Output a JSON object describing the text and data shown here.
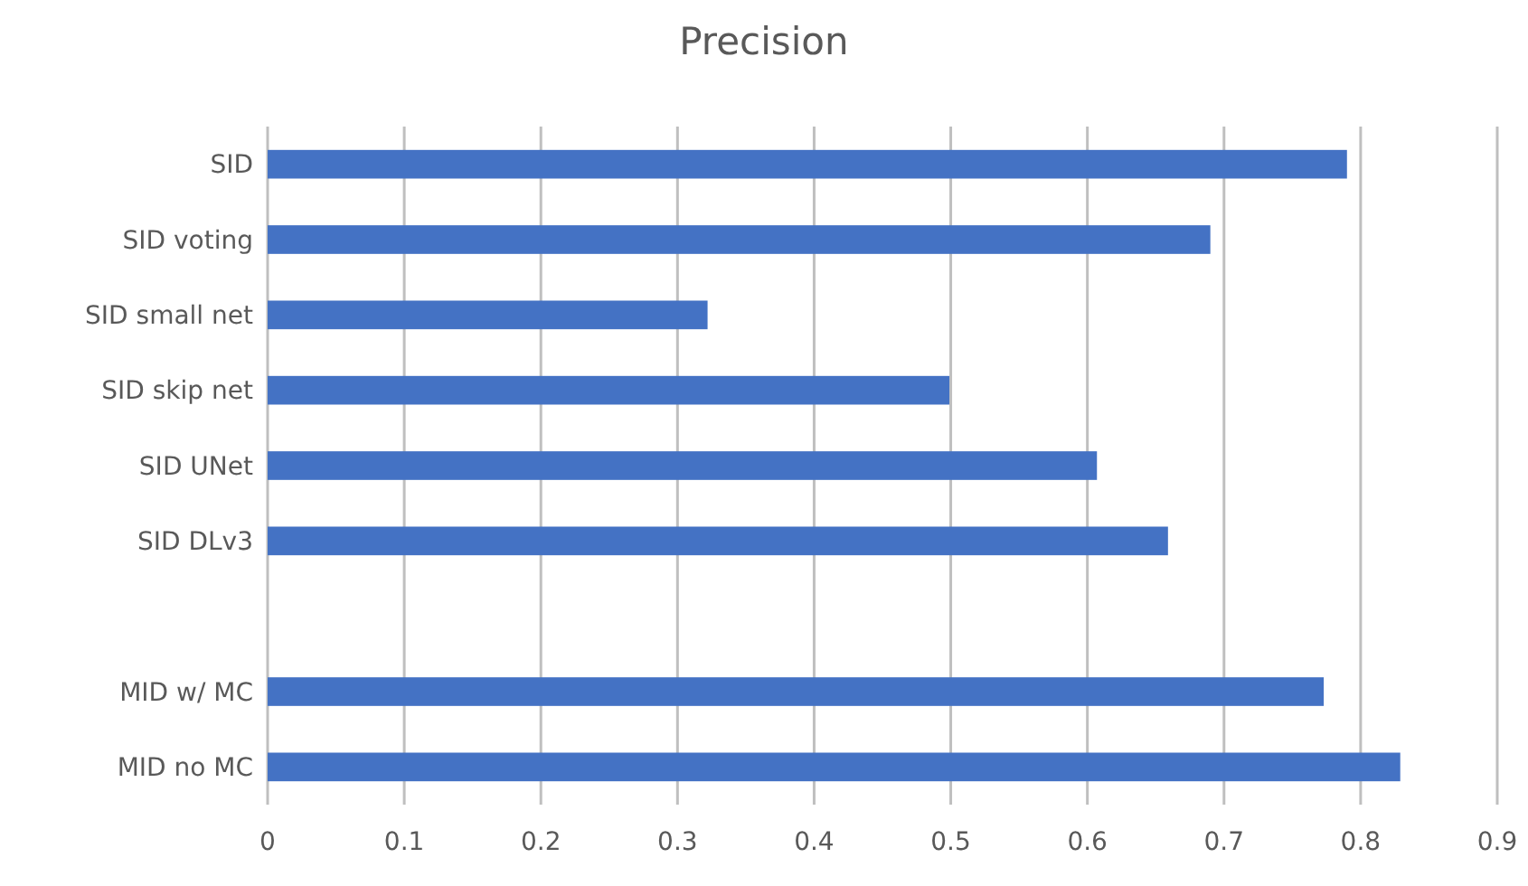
{
  "chart_data": {
    "type": "bar",
    "orientation": "horizontal",
    "title": "Precision",
    "categories": [
      "SID",
      "SID voting",
      "SID small net",
      "SID skip net",
      "SID UNet",
      "SID DLv3",
      null,
      "MID w/ MC",
      "MID no MC"
    ],
    "values": [
      0.79,
      0.69,
      0.322,
      0.499,
      0.607,
      0.659,
      null,
      0.773,
      0.829
    ],
    "color": "#4472c4",
    "xlim": [
      0,
      0.9
    ],
    "xticks": [
      0,
      0.1,
      0.2,
      0.3,
      0.4,
      0.5,
      0.6,
      0.7,
      0.8,
      0.9
    ],
    "grid": "x"
  }
}
